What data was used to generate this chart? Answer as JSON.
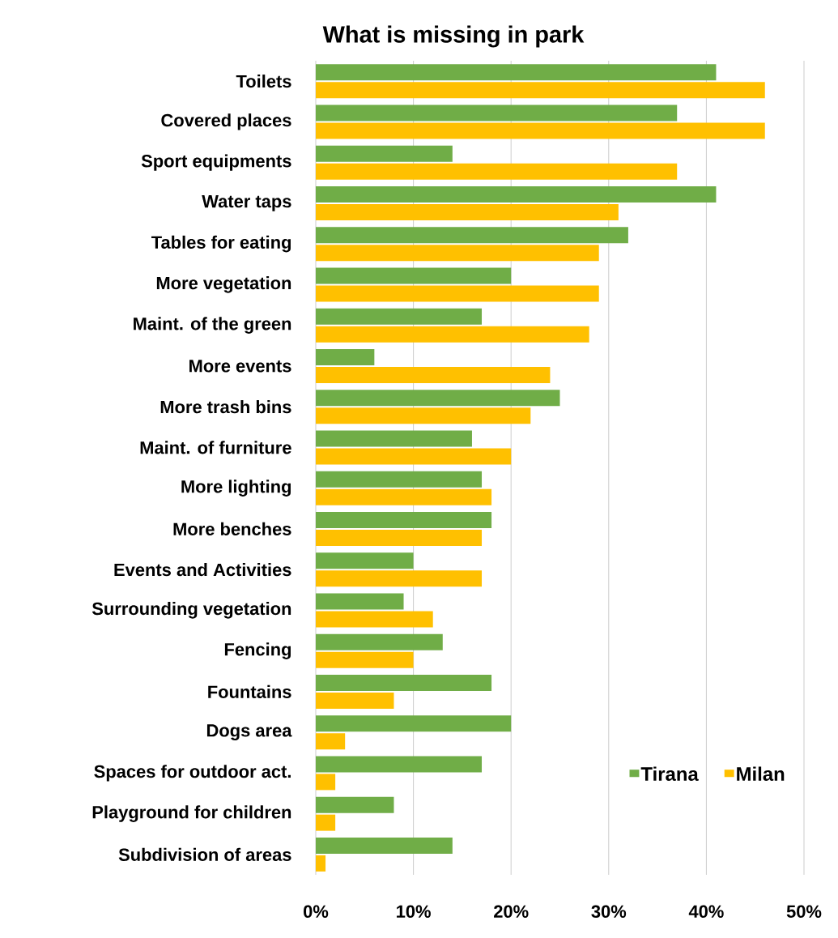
{
  "chart_data": {
    "type": "bar",
    "orientation": "horizontal",
    "title": "What is missing in park",
    "categories": [
      "Toilets",
      "Covered places",
      "Sport equipments",
      "Water taps",
      "Tables for eating",
      "More vegetation",
      "Maint. of the green",
      "More events",
      "More trash bins",
      "Maint. of furniture",
      "More lighting",
      "More benches",
      "Events and Activities",
      "Surrounding vegetation",
      "Fencing",
      "Fountains",
      "Dogs area",
      "Spaces for outdoor act.",
      "Playground for children",
      "Subdivision of areas"
    ],
    "series": [
      {
        "name": "Tirana",
        "color": "#70ad47",
        "values": [
          41,
          37,
          14,
          41,
          32,
          20,
          17,
          6,
          25,
          16,
          17,
          18,
          10,
          9,
          13,
          18,
          20,
          17,
          8,
          14
        ]
      },
      {
        "name": "Milan",
        "color": "#ffc000",
        "values": [
          46,
          46,
          37,
          31,
          29,
          29,
          28,
          24,
          22,
          20,
          18,
          17,
          17,
          12,
          10,
          8,
          3,
          2,
          2,
          1
        ]
      }
    ],
    "xlim": [
      0,
      50
    ],
    "xticks": [
      {
        "value": 0,
        "label": "0%"
      },
      {
        "value": 10,
        "label": "10%"
      },
      {
        "value": 20,
        "label": "20%"
      },
      {
        "value": 30,
        "label": "30%"
      },
      {
        "value": 40,
        "label": "40%"
      },
      {
        "value": 50,
        "label": "50%"
      }
    ],
    "grid": "x",
    "legend": "bottom right"
  }
}
